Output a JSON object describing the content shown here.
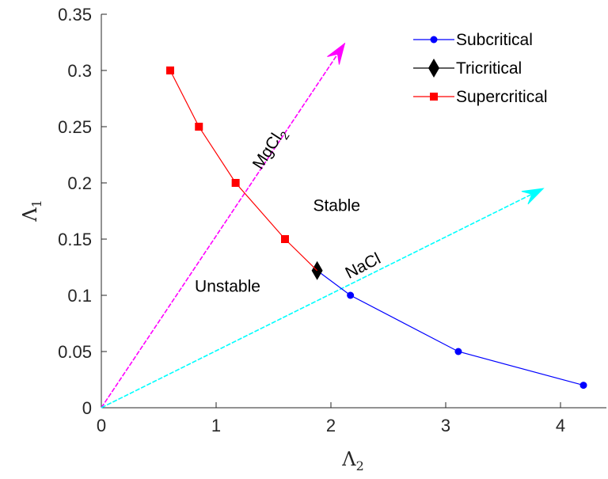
{
  "chart_data": {
    "type": "line",
    "xlabel": "Λ",
    "xlabel_sub": "2",
    "ylabel": "Λ",
    "ylabel_sub": "1",
    "xlim": [
      0,
      4.4
    ],
    "ylim": [
      0,
      0.35
    ],
    "xticks": [
      0,
      1,
      2,
      3,
      4
    ],
    "yticks": [
      0,
      0.05,
      0.1,
      0.15,
      0.2,
      0.25,
      0.3,
      0.35
    ],
    "xtick_labels": [
      "0",
      "1",
      "2",
      "3",
      "4"
    ],
    "ytick_labels": [
      "0",
      "0.05",
      "0.1",
      "0.15",
      "0.2",
      "0.25",
      "0.3",
      "0.35"
    ],
    "grid": false,
    "legend_position": "top-right",
    "series": [
      {
        "name": "Subcritical",
        "color": "#0000ff",
        "marker": "circle",
        "x": [
          1.88,
          2.17,
          3.11,
          4.2
        ],
        "y": [
          0.122,
          0.1,
          0.05,
          0.02
        ],
        "marker_from": 1
      },
      {
        "name": "Tricritical",
        "color": "#000000",
        "marker": "diamond",
        "x": [
          1.88
        ],
        "y": [
          0.122
        ]
      },
      {
        "name": "Supercritical",
        "color": "#ff0000",
        "marker": "square",
        "x": [
          0.6,
          0.85,
          1.17,
          1.6,
          1.88
        ],
        "y": [
          0.3,
          0.25,
          0.2,
          0.15,
          0.122
        ],
        "marker_to": 3
      }
    ],
    "arrows": [
      {
        "name": "MgCl2-arrow",
        "color": "#ff00ff",
        "x0": 0,
        "y0": 0,
        "x1": 2.12,
        "y1": 0.324
      },
      {
        "name": "NaCl-arrow",
        "color": "#00ffff",
        "x0": 0,
        "y0": 0,
        "x1": 3.85,
        "y1": 0.195
      }
    ],
    "annotations": [
      {
        "name": "label-stable",
        "text": "Stable",
        "x": 2.05,
        "y": 0.175,
        "rotate": 0
      },
      {
        "name": "label-unstable",
        "text": "Unstable",
        "x": 1.1,
        "y": 0.103,
        "rotate": 0
      },
      {
        "name": "label-nacl",
        "text": "NaCl",
        "x": 2.3,
        "y": 0.122,
        "rotate": -27
      },
      {
        "name": "label-mgcl2",
        "text": "MgCl",
        "sub": "2",
        "x": 1.5,
        "y": 0.228,
        "rotate": -57
      }
    ]
  }
}
